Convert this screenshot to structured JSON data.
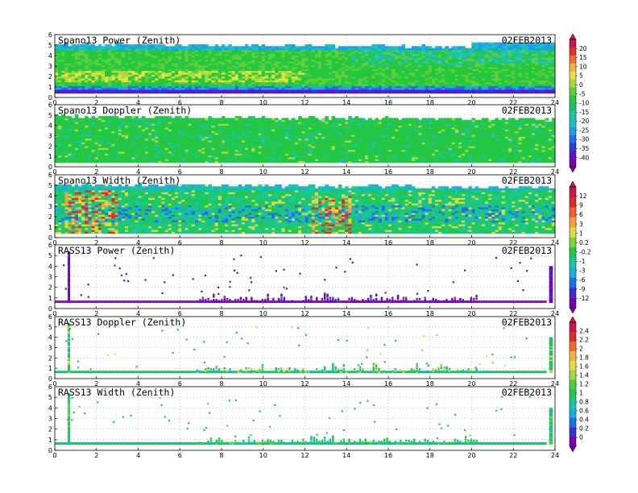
{
  "colors": {
    "cb_power": [
      "#7a00b0",
      "#5a14c8",
      "#2f3cd8",
      "#1e6ee8",
      "#1aa0e6",
      "#18c0c8",
      "#16c89a",
      "#18c46a",
      "#24c83c",
      "#5cd03a",
      "#a8dc3c",
      "#e8e040",
      "#f4b040",
      "#f07030",
      "#e03030",
      "#c81848"
    ],
    "cb_width": [
      "#7a00b0",
      "#3a30d0",
      "#1e70e8",
      "#18b0d8",
      "#16c89a",
      "#20c850",
      "#7ad23c",
      "#d8dc40",
      "#f4a040",
      "#f06030",
      "#e02a2a",
      "#c81848"
    ],
    "cb_doppler": [
      "#7a00b0",
      "#3a30d0",
      "#1e70e8",
      "#18b0d8",
      "#16c8a0",
      "#20c850",
      "#50cc40",
      "#a0d840",
      "#e0e040",
      "#f4b040",
      "#f06830",
      "#e02a2a",
      "#c81848"
    ]
  },
  "chart_data": [
    {
      "type": "heatmap",
      "title": "Spano13 Power (Zenith)",
      "date": "02FEB2013",
      "xlim": [
        0,
        24
      ],
      "xticks": [
        "0",
        "2",
        "4",
        "6",
        "8",
        "10",
        "12",
        "14",
        "16",
        "18",
        "20",
        "22",
        "24"
      ],
      "ylim": [
        0,
        6
      ],
      "yticks": [
        "0",
        "1",
        "2",
        "3",
        "4",
        "5",
        "6"
      ],
      "style": "dense",
      "variant": "power",
      "range": [
        0.4,
        5.0
      ],
      "grid": true
    },
    {
      "type": "heatmap",
      "title": "Spano13 Doppler (Zenith)",
      "date": "02FEB2013",
      "xlim": [
        0,
        24
      ],
      "xticks": [
        "0",
        "2",
        "4",
        "6",
        "8",
        "10",
        "12",
        "14",
        "16",
        "18",
        "20",
        "22",
        "24"
      ],
      "ylim": [
        0,
        6
      ],
      "yticks": [
        "0",
        "1",
        "2",
        "3",
        "4",
        "5",
        "6"
      ],
      "style": "dense",
      "variant": "doppler",
      "range": [
        0.4,
        4.8
      ],
      "grid": true
    },
    {
      "type": "heatmap",
      "title": "Spano13 Width (Zenith)",
      "date": "02FEB2013",
      "xlim": [
        0,
        24
      ],
      "xticks": [
        "0",
        "2",
        "4",
        "6",
        "8",
        "10",
        "12",
        "14",
        "16",
        "18",
        "20",
        "22",
        "24"
      ],
      "ylim": [
        0,
        6
      ],
      "yticks": [
        "0",
        "1",
        "2",
        "3",
        "4",
        "5",
        "6"
      ],
      "style": "dense",
      "variant": "width",
      "range": [
        0.4,
        5.0
      ],
      "grid": true
    },
    {
      "type": "heatmap",
      "title": "RASS13 Power (Zenith)",
      "date": "02FEB2013",
      "xlim": [
        0,
        24
      ],
      "xticks": [
        "0",
        "2",
        "4",
        "6",
        "8",
        "10",
        "12",
        "14",
        "16",
        "18",
        "20",
        "22",
        "24"
      ],
      "ylim": [
        0,
        6
      ],
      "yticks": [
        "0",
        "1",
        "2",
        "3",
        "4",
        "5",
        "6"
      ],
      "style": "sparse",
      "variant": "rpower",
      "baseline": 0.6,
      "grid": true
    },
    {
      "type": "heatmap",
      "title": "RASS13 Doppler (Zenith)",
      "date": "02FEB2013",
      "xlim": [
        0,
        24
      ],
      "xticks": [
        "0",
        "2",
        "4",
        "6",
        "8",
        "10",
        "12",
        "14",
        "16",
        "18",
        "20",
        "22",
        "24"
      ],
      "ylim": [
        0,
        6
      ],
      "yticks": [
        "0",
        "1",
        "2",
        "3",
        "4",
        "5",
        "6"
      ],
      "style": "sparse",
      "variant": "rdoppler",
      "baseline": 0.6,
      "grid": true
    },
    {
      "type": "heatmap",
      "title": "RASS13 Width (Zenith)",
      "date": "02FEB2013",
      "xlim": [
        0,
        24
      ],
      "xticks": [
        "0",
        "2",
        "4",
        "6",
        "8",
        "10",
        "12",
        "14",
        "16",
        "18",
        "20",
        "22",
        "24"
      ],
      "ylim": [
        0,
        6
      ],
      "yticks": [
        "0",
        "1",
        "2",
        "3",
        "4",
        "5",
        "6"
      ],
      "style": "sparse",
      "variant": "rwidth",
      "baseline": 0.6,
      "grid": true
    }
  ],
  "colorbars": [
    {
      "name": "power-colorbar",
      "ticks": [
        "20",
        "15",
        "10",
        "5",
        "0",
        "-5",
        "-10",
        "-15",
        "-20",
        "-25",
        "-30",
        "-35",
        "-40"
      ],
      "palette": "cb_power"
    },
    {
      "name": "width-colorbar",
      "ticks": [
        "12",
        "9",
        "6",
        "3",
        "1",
        "0.2",
        "-0.2",
        "-1",
        "-3",
        "-6",
        "-9",
        "-12"
      ],
      "palette": "cb_width"
    },
    {
      "name": "doppler-colorbar",
      "ticks": [
        "2.4",
        "2.2",
        "2",
        "1.8",
        "1.6",
        "1.4",
        "1.2",
        "1",
        "0.8",
        "0.6",
        "0.4",
        "0.2",
        "0"
      ],
      "palette": "cb_doppler"
    }
  ]
}
